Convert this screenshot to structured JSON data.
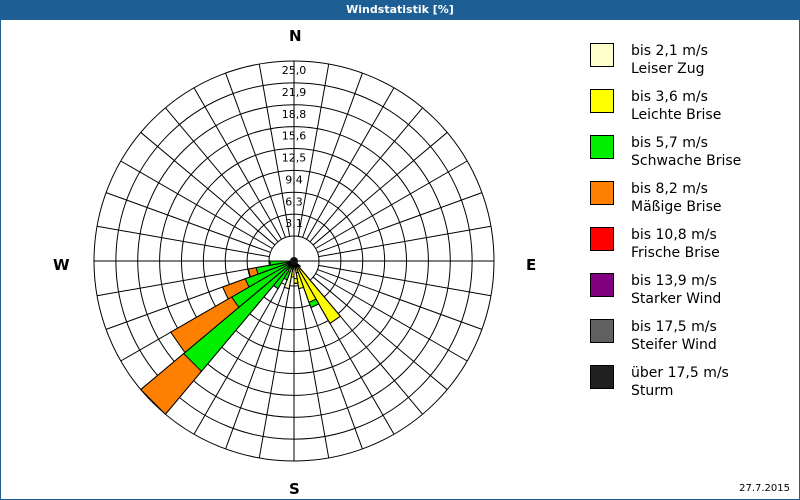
{
  "window": {
    "title": "Windstatistik [%]"
  },
  "compass": {
    "n": "N",
    "e": "E",
    "s": "S",
    "w": "W"
  },
  "legend": [
    {
      "line1": "bis 2,1 m/s",
      "line2": "Leiser Zug",
      "color": "#ffffcc"
    },
    {
      "line1": "bis 3,6 m/s",
      "line2": "Leichte Brise",
      "color": "#ffff00"
    },
    {
      "line1": "bis 5,7 m/s",
      "line2": "Schwache Brise",
      "color": "#00ee00"
    },
    {
      "line1": "bis 8,2 m/s",
      "line2": "Mäßige Brise",
      "color": "#ff8000"
    },
    {
      "line1": "bis 10,8 m/s",
      "line2": "Frische Brise",
      "color": "#ff0000"
    },
    {
      "line1": "bis 13,9 m/s",
      "line2": "Starker Wind",
      "color": "#800080"
    },
    {
      "line1": "bis 17,5 m/s",
      "line2": "Steifer Wind",
      "color": "#606060"
    },
    {
      "line1": "über 17,5 m/s",
      "line2": "Sturm",
      "color": "#202020"
    }
  ],
  "footer": {
    "date": "27.7.2015"
  },
  "chart_data": {
    "type": "wind-rose",
    "title": "Windstatistik [%]",
    "radial_unit": "%",
    "radial_ticks": [
      "3,1",
      "6,3",
      "9,4",
      "12,5",
      "15,6",
      "18,8",
      "21,9",
      "25,0"
    ],
    "rmax": 25.0,
    "sector_width_deg": 10,
    "speed_classes": [
      "bis 2,1 m/s",
      "bis 3,6 m/s",
      "bis 5,7 m/s",
      "bis 8,2 m/s",
      "bis 10,8 m/s",
      "bis 13,9 m/s",
      "bis 17,5 m/s",
      "über 17,5 m/s"
    ],
    "sectors": [
      {
        "from": 130,
        "to": 140,
        "cumulative": [
          0.3,
          1.0,
          1.0,
          1.0
        ]
      },
      {
        "from": 140,
        "to": 150,
        "cumulative": [
          0.5,
          9.0,
          9.0,
          9.0
        ]
      },
      {
        "from": 150,
        "to": 160,
        "cumulative": [
          0.8,
          5.5,
          6.2,
          6.2
        ]
      },
      {
        "from": 160,
        "to": 170,
        "cumulative": [
          1.5,
          3.5,
          3.5,
          3.5
        ]
      },
      {
        "from": 170,
        "to": 180,
        "cumulative": [
          2.2,
          2.8,
          2.8,
          2.8
        ]
      },
      {
        "from": 180,
        "to": 190,
        "cumulative": [
          1.0,
          2.0,
          2.0,
          2.0
        ]
      },
      {
        "from": 190,
        "to": 200,
        "cumulative": [
          3.5,
          3.5,
          3.5,
          3.5
        ]
      },
      {
        "from": 200,
        "to": 210,
        "cumulative": [
          0.5,
          1.5,
          2.5,
          2.5
        ]
      },
      {
        "from": 210,
        "to": 220,
        "cumulative": [
          0.3,
          0.8,
          4.0,
          4.0
        ]
      },
      {
        "from": 220,
        "to": 230,
        "cumulative": [
          0.3,
          0.8,
          18.0,
          25.0
        ]
      },
      {
        "from": 230,
        "to": 240,
        "cumulative": [
          0.3,
          0.8,
          9.0,
          17.8
        ]
      },
      {
        "from": 240,
        "to": 250,
        "cumulative": [
          0.2,
          0.5,
          6.5,
          9.5
        ]
      },
      {
        "from": 250,
        "to": 260,
        "cumulative": [
          0.2,
          0.4,
          4.8,
          5.8
        ]
      },
      {
        "from": 260,
        "to": 270,
        "cumulative": [
          0.2,
          0.3,
          3.0,
          3.0
        ]
      }
    ]
  }
}
